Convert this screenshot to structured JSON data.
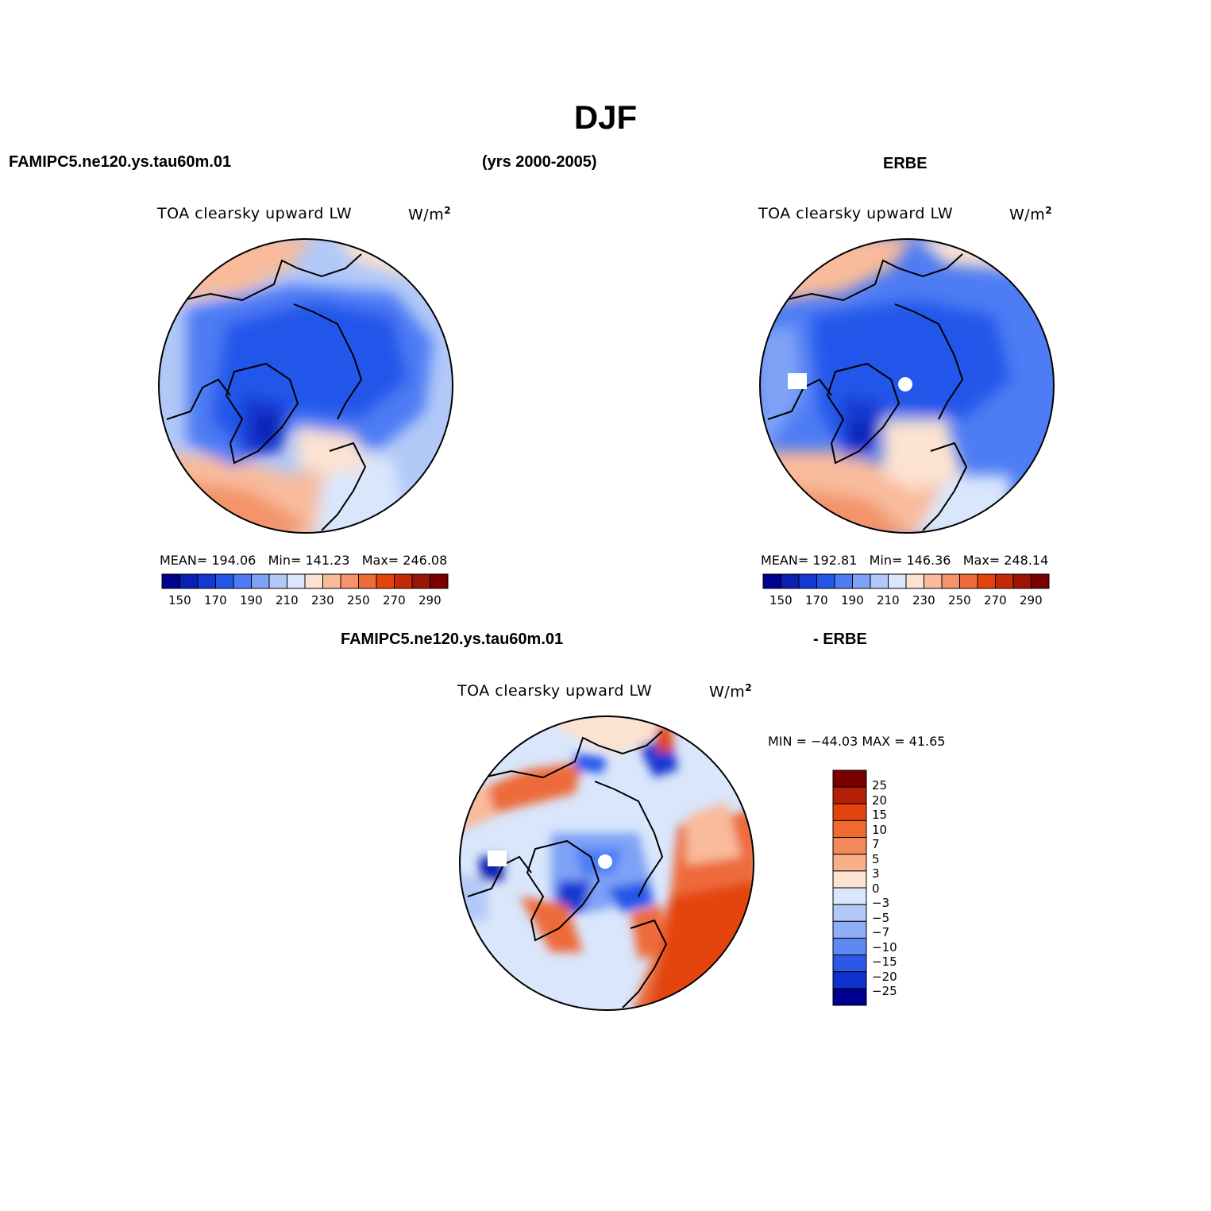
{
  "title": "DJF",
  "header": {
    "case_name": "FAMIPC5.ne120.ys.tau60m.01",
    "years": "(yrs 2000-2005)",
    "obs_name": "ERBE"
  },
  "diff_header": {
    "case_name": "FAMIPC5.ne120.ys.tau60m.01",
    "obs_suffix": "- ERBE"
  },
  "colors": {
    "abs_scale": [
      "#00008f",
      "#0a20b4",
      "#1638d2",
      "#2456ea",
      "#4d7cf4",
      "#7ea2f6",
      "#b2c9f8",
      "#d9e6fb",
      "#fce2d0",
      "#f8bb9b",
      "#f3946a",
      "#ee6b3a",
      "#e3440e",
      "#c52a08",
      "#9a1504",
      "#7a0000"
    ],
    "diff_scale": [
      "#7a0000",
      "#b51f05",
      "#e3440e",
      "#f06a2f",
      "#f48a59",
      "#f8b08a",
      "#fce2d0",
      "#d9e6fb",
      "#b2c9f8",
      "#8eaef6",
      "#5f88f2",
      "#2c58e8",
      "#0e30cc",
      "#00008f"
    ]
  },
  "panels": [
    {
      "name": "model",
      "title": "TOA clearsky upward LW",
      "units": "W/m",
      "units_sup": "2",
      "mean_label": "MEAN=",
      "mean": "194.06",
      "min_label": "Min=",
      "min": "141.23",
      "max_label": "Max=",
      "max": "246.08",
      "colorbar_ticks": [
        "150",
        "170",
        "190",
        "210",
        "230",
        "250",
        "270",
        "290"
      ]
    },
    {
      "name": "obs",
      "title": "TOA clearsky upward LW",
      "units": "W/m",
      "units_sup": "2",
      "mean_label": "MEAN=",
      "mean": "192.81",
      "min_label": "Min=",
      "min": "146.36",
      "max_label": "Max=",
      "max": "248.14",
      "colorbar_ticks": [
        "150",
        "170",
        "190",
        "210",
        "230",
        "250",
        "270",
        "290"
      ]
    }
  ],
  "diff_panel": {
    "title": "TOA clearsky upward LW",
    "units": "W/m",
    "units_sup": "2",
    "minmax_text": "MIN = −44.03 MAX =   41.65",
    "colorbar_ticks": [
      "25",
      "20",
      "15",
      "10",
      "7",
      "5",
      "3",
      "0",
      "−3",
      "−5",
      "−7",
      "−10",
      "−15",
      "−20",
      "−25"
    ]
  }
}
